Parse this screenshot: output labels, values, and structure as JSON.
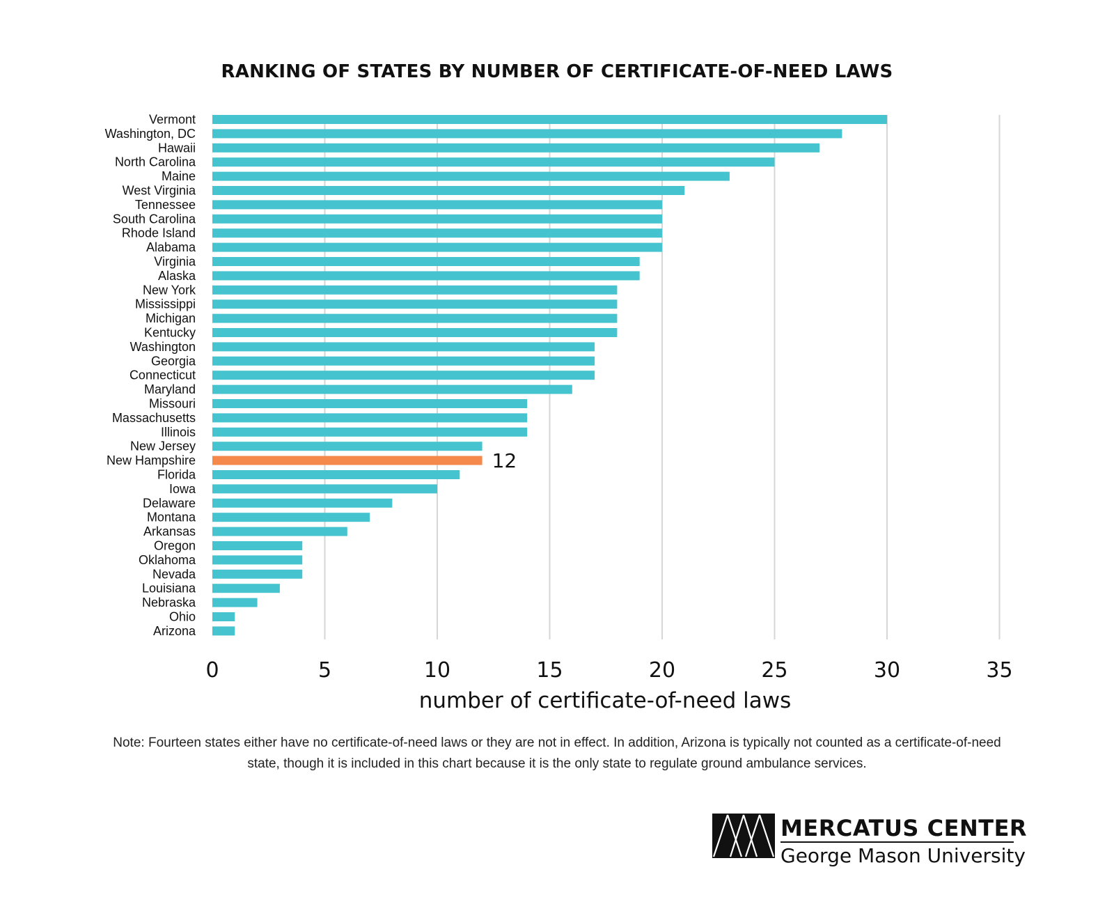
{
  "chart_data": {
    "type": "bar",
    "orientation": "horizontal",
    "title": "RANKING OF STATES BY NUMBER OF CERTIFICATE-OF-NEED LAWS",
    "xlabel": "number of certificate-of-need laws",
    "ylabel": "",
    "xlim": [
      0,
      35
    ],
    "xticks": [
      0,
      5,
      10,
      15,
      20,
      25,
      30,
      35
    ],
    "grid": true,
    "bar_color": "#45c4cf",
    "highlight_color": "#f4894b",
    "highlight": {
      "category": "New Hampshire",
      "label": "12"
    },
    "categories": [
      "Vermont",
      "Washington, DC",
      "Hawaii",
      "North Carolina",
      "Maine",
      "West Virginia",
      "Tennessee",
      "South Carolina",
      "Rhode Island",
      "Alabama",
      "Virginia",
      "Alaska",
      "New York",
      "Mississippi",
      "Michigan",
      "Kentucky",
      "Washington",
      "Georgia",
      "Connecticut",
      "Maryland",
      "Missouri",
      "Massachusetts",
      "Illinois",
      "New Jersey",
      "New Hampshire",
      "Florida",
      "Iowa",
      "Delaware",
      "Montana",
      "Arkansas",
      "Oregon",
      "Oklahoma",
      "Nevada",
      "Louisiana",
      "Nebraska",
      "Ohio",
      "Arizona"
    ],
    "values": [
      30,
      28,
      27,
      25,
      23,
      21,
      20,
      20,
      20,
      20,
      19,
      19,
      18,
      18,
      18,
      18,
      17,
      17,
      17,
      16,
      14,
      14,
      14,
      12,
      12,
      11,
      10,
      8,
      7,
      6,
      4,
      4,
      4,
      3,
      2,
      1,
      1
    ]
  },
  "note": "Note: Fourteen states either have no certificate-of-need laws or they are not in effect. In addition, Arizona is typically not counted as a certificate-of-need state, though it is included in this chart because it is the only state to regulate ground ambulance services.",
  "logo": {
    "line1": "MERCATUS CENTER",
    "line2": "George Mason University"
  }
}
